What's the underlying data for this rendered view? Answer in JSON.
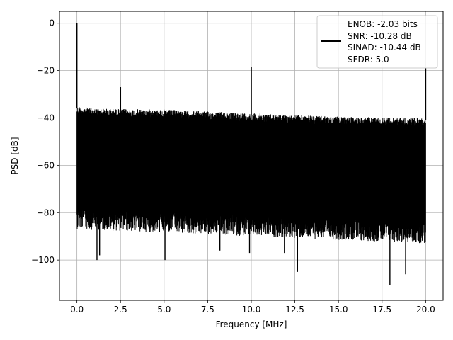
{
  "chart_data": {
    "type": "line",
    "title": "",
    "xlabel": "Frequency [MHz]",
    "ylabel": "PSD [dB]",
    "xlim": [
      -1.0,
      21.0
    ],
    "ylim": [
      -117,
      5
    ],
    "xticks": [
      0.0,
      2.5,
      5.0,
      7.5,
      10.0,
      12.5,
      15.0,
      17.5,
      20.0
    ],
    "xtick_labels": [
      "0.0",
      "2.5",
      "5.0",
      "7.5",
      "10.0",
      "12.5",
      "15.0",
      "17.5",
      "20.0"
    ],
    "yticks": [
      0,
      -20,
      -40,
      -60,
      -80,
      -100
    ],
    "ytick_labels": [
      "0",
      "−20",
      "−40",
      "−60",
      "−80",
      "−100"
    ],
    "grid": true,
    "legend_position": "top-right",
    "legend_lines": [
      "ENOB: -2.03 bits",
      "SNR: -10.28 dB",
      "SINAD: -10.44 dB",
      "SFDR: 5.0"
    ],
    "series_color": "#000000",
    "noise_floor": {
      "x_range": [
        0.0,
        20.0
      ],
      "upper_envelope": [
        [
          0.0,
          -35
        ],
        [
          1.0,
          -36
        ],
        [
          5.0,
          -36.5
        ],
        [
          10.0,
          -38
        ],
        [
          15.0,
          -39.5
        ],
        [
          20.0,
          -40
        ]
      ],
      "lower_envelope": [
        [
          0.0,
          -78
        ],
        [
          20.0,
          -84
        ]
      ]
    },
    "peaks": [
      {
        "x": 0.0,
        "y": 0.0
      },
      {
        "x": 2.5,
        "y": -27
      },
      {
        "x": 10.0,
        "y": -18.5
      },
      {
        "x": 20.0,
        "y": -19
      }
    ],
    "dips": [
      {
        "x": 1.15,
        "y": -100
      },
      {
        "x": 1.3,
        "y": -98
      },
      {
        "x": 5.05,
        "y": -100
      },
      {
        "x": 12.65,
        "y": -105
      },
      {
        "x": 17.95,
        "y": -110.5
      },
      {
        "x": 18.85,
        "y": -106
      },
      {
        "x": 8.2,
        "y": -96
      },
      {
        "x": 9.9,
        "y": -97
      },
      {
        "x": 11.9,
        "y": -97
      }
    ]
  }
}
